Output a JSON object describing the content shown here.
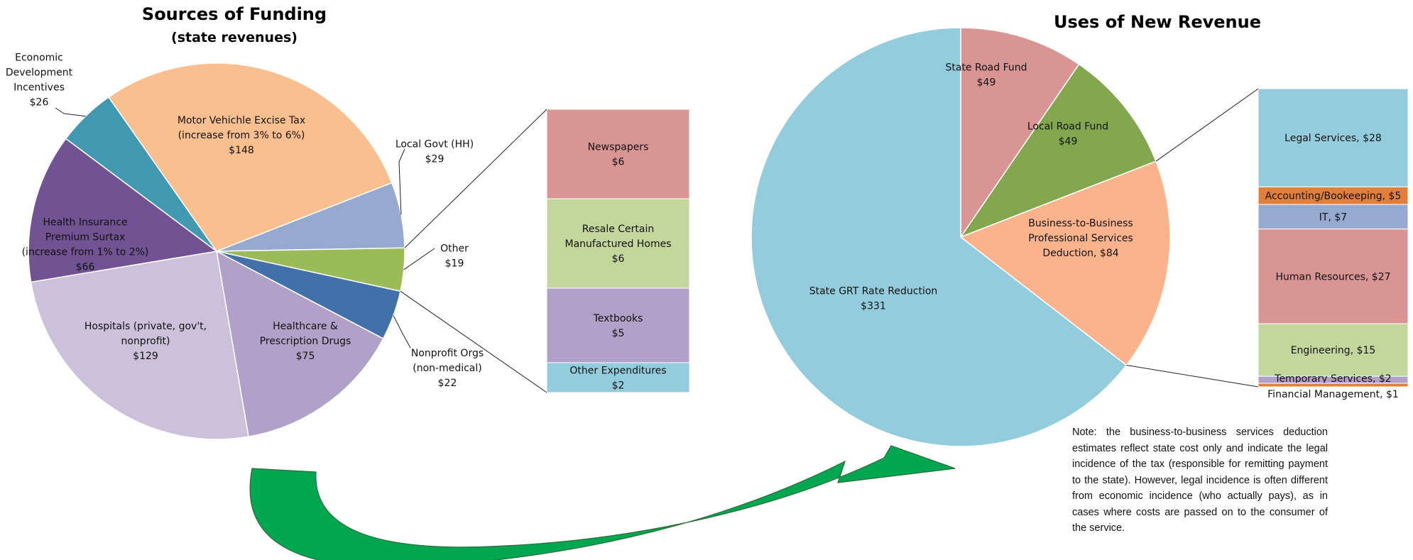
{
  "colors": {
    "motor": "#fabf8f",
    "localgovt": "#95a9d1",
    "other": "#9bbb59",
    "nonprofit": "#4271a9",
    "healthcare": "#b1a0c7",
    "hospitals": "#ccc1da",
    "health_ins": "#715293",
    "econ": "#4099b0",
    "newspapers": "#d99594",
    "resale": "#c3d69b",
    "textbooks": "#b1a0c7",
    "other_exp": "#93cddd",
    "grt": "#93cddd",
    "state_road": "#d99594",
    "local_road": "#83a74f",
    "b2b": "#fab38b",
    "legal": "#93cddd",
    "accounting": "#e27f3a",
    "it": "#95a9d1",
    "hr": "#d99594",
    "engineering": "#c3d69b",
    "temporary": "#b1a0c7",
    "financial": "#e27f3a",
    "arrow": "#00a650"
  },
  "chart_data": [
    {
      "type": "pie",
      "title": "Sources of Funding",
      "subtitle": "(state revenues)",
      "slices": [
        {
          "key": "motor",
          "lines": [
            "Motor Vehichle Excise Tax",
            "(increase from 3% to 6%)",
            "$148"
          ],
          "value": 148
        },
        {
          "key": "localgovt",
          "lines": [
            "Local Govt (HH)",
            "$29"
          ],
          "value": 29
        },
        {
          "key": "other",
          "lines": [
            "Other",
            "$19"
          ],
          "value": 19
        },
        {
          "key": "nonprofit",
          "lines": [
            "Nonprofit Orgs",
            "(non-medical)",
            "$22"
          ],
          "value": 22
        },
        {
          "key": "healthcare",
          "lines": [
            "Healthcare &",
            "Prescription Drugs",
            "$75"
          ],
          "value": 75
        },
        {
          "key": "hospitals",
          "lines": [
            "Hospitals (private, gov't,",
            "nonprofit)",
            "$129"
          ],
          "value": 129
        },
        {
          "key": "health_ins",
          "lines": [
            "Health Insurance",
            "Premium Surtax",
            "(increase  from 1% to 2%)",
            "$66"
          ],
          "value": 66
        },
        {
          "key": "econ",
          "lines": [
            "Economic",
            "Development",
            "Incentives",
            "$26"
          ],
          "value": 26
        }
      ]
    },
    {
      "type": "bar",
      "stacked": true,
      "breakout_of": "Other",
      "segments": [
        {
          "key": "newspapers",
          "lines": [
            "Newspapers",
            "$6"
          ],
          "value": 6
        },
        {
          "key": "resale",
          "lines": [
            "Resale Certain",
            "Manufactured Homes",
            "$6"
          ],
          "value": 6
        },
        {
          "key": "textbooks",
          "lines": [
            "Textbooks",
            "$5"
          ],
          "value": 5
        },
        {
          "key": "other_exp",
          "lines": [
            "Other Expenditures",
            "$2"
          ],
          "value": 2
        }
      ]
    },
    {
      "type": "pie",
      "title": "Uses of New Revenue",
      "slices": [
        {
          "key": "state_road",
          "lines": [
            "State Road Fund",
            "$49"
          ],
          "value": 49
        },
        {
          "key": "local_road",
          "lines": [
            "Local Road Fund",
            "$49"
          ],
          "value": 49
        },
        {
          "key": "b2b",
          "lines": [
            "Business-to-Business",
            "Professional Services",
            "Deduction,  $84"
          ],
          "value": 84
        },
        {
          "key": "grt",
          "lines": [
            "State GRT Rate Reduction",
            "$331"
          ],
          "value": 331
        }
      ]
    },
    {
      "type": "bar",
      "stacked": true,
      "breakout_of": "Business-to-Business Professional Services Deduction",
      "segments": [
        {
          "key": "legal",
          "lines": [
            "Legal Services, $28"
          ],
          "value": 28
        },
        {
          "key": "accounting",
          "lines": [
            "Accounting/Bookeeping, $5"
          ],
          "value": 5
        },
        {
          "key": "it",
          "lines": [
            "IT, $7"
          ],
          "value": 7
        },
        {
          "key": "hr",
          "lines": [
            "Human Resources, $27"
          ],
          "value": 27
        },
        {
          "key": "engineering",
          "lines": [
            "Engineering, $15"
          ],
          "value": 15
        },
        {
          "key": "temporary",
          "lines": [
            "Temporary Services, $2"
          ],
          "value": 2
        },
        {
          "key": "financial",
          "lines": [
            "Financial Management,  $1"
          ],
          "value": 1
        }
      ]
    }
  ],
  "note": "Note: the business-to-business services deduction estimates reflect state cost only and indicate the legal incidence of the tax (responsible for remitting payment to the state). However, legal incidence is often different from economic incidence (who actually pays), as in cases where costs are passed on to the consumer of the service."
}
